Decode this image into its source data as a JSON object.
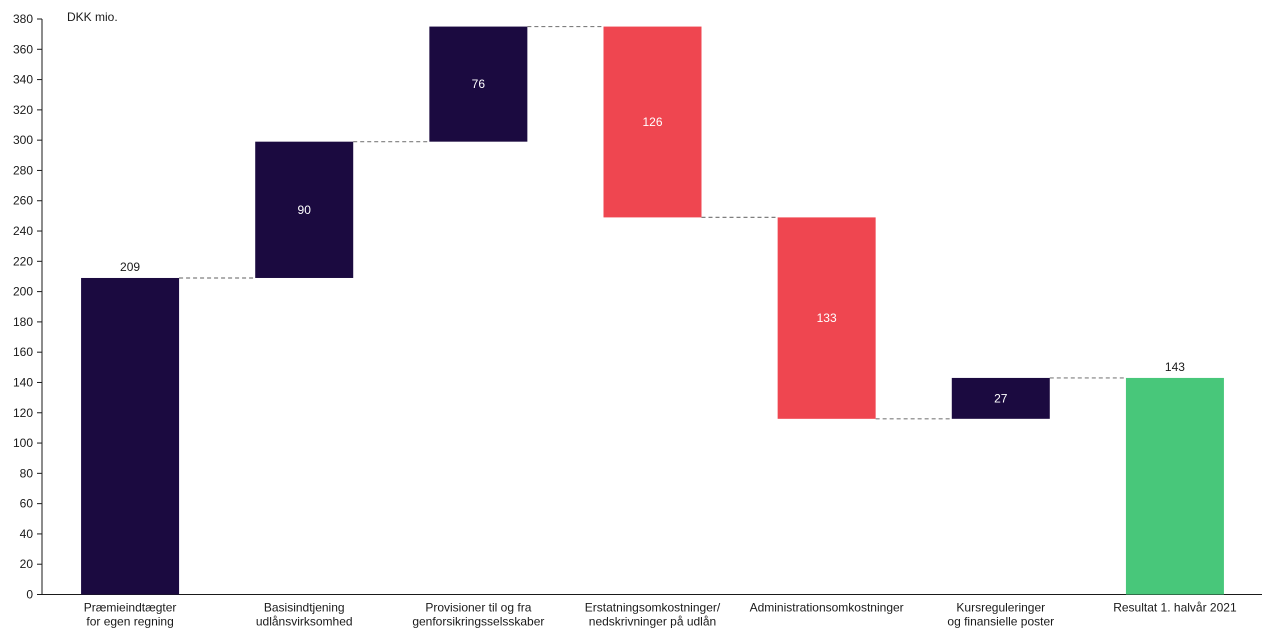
{
  "chart_data": {
    "type": "bar",
    "subtype": "waterfall",
    "unit_label": "DKK mio.",
    "ylim": [
      0,
      380
    ],
    "yticks": [
      0,
      20,
      40,
      60,
      80,
      100,
      120,
      140,
      160,
      180,
      200,
      220,
      240,
      260,
      280,
      300,
      320,
      340,
      360,
      380
    ],
    "grid": false,
    "connectors": "dashed",
    "colors": {
      "increase": "#1b0a40",
      "decrease": "#ef4650",
      "total": "#48c77a",
      "connector": "#7f7f7f"
    },
    "bars": [
      {
        "category": [
          "Præmieindtægter",
          "for egen regning"
        ],
        "kind": "total",
        "start": 0,
        "end": 209,
        "label": "209"
      },
      {
        "category": [
          "Basisindtjening",
          "udlånsvirksomhed"
        ],
        "kind": "increase",
        "start": 209,
        "end": 299,
        "label": "90"
      },
      {
        "category": [
          "Provisioner til og fra",
          "genforsikringsselsskaber"
        ],
        "kind": "increase",
        "start": 299,
        "end": 375,
        "label": "76"
      },
      {
        "category": [
          "Erstatningsomkostninger/",
          "nedskrivninger på udlån"
        ],
        "kind": "decrease",
        "start": 375,
        "end": 249,
        "label": "126"
      },
      {
        "category": [
          "Administrationsomkostninger"
        ],
        "kind": "decrease",
        "start": 249,
        "end": 116,
        "label": "133"
      },
      {
        "category": [
          "Kursreguleringer",
          "og finansielle poster"
        ],
        "kind": "increase",
        "start": 116,
        "end": 143,
        "label": "27"
      },
      {
        "category": [
          "Resultat 1. halvår 2021"
        ],
        "kind": "final",
        "start": 0,
        "end": 143,
        "label": "143"
      }
    ]
  }
}
